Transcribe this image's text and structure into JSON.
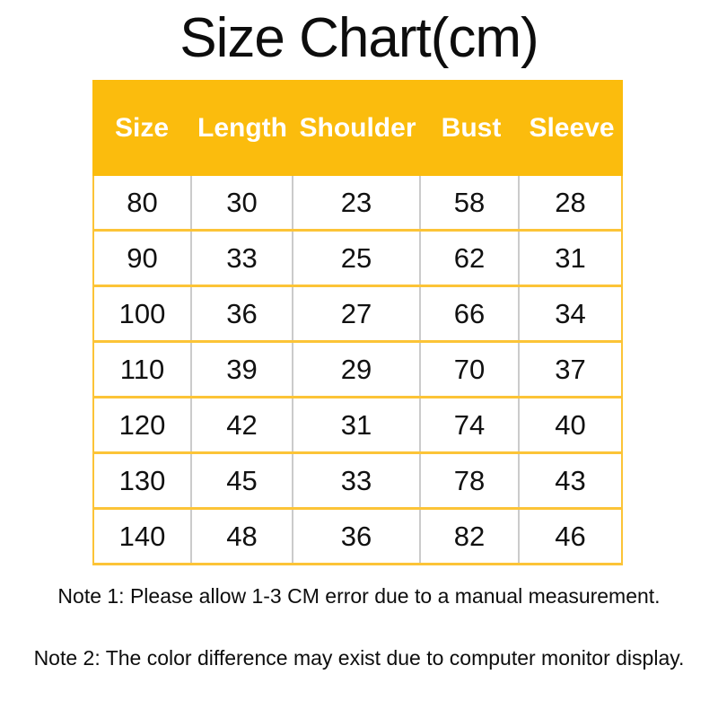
{
  "title": "Size Chart(cm)",
  "chart_data": {
    "type": "table",
    "title": "Size Chart(cm)",
    "unit": "cm",
    "columns": [
      "Size",
      "Length",
      "Shoulder",
      "Bust",
      "Sleeve"
    ],
    "rows": [
      [
        "80",
        "30",
        "23",
        "58",
        "28"
      ],
      [
        "90",
        "33",
        "25",
        "62",
        "31"
      ],
      [
        "100",
        "36",
        "27",
        "66",
        "34"
      ],
      [
        "110",
        "39",
        "29",
        "70",
        "37"
      ],
      [
        "120",
        "42",
        "31",
        "74",
        "40"
      ],
      [
        "130",
        "45",
        "33",
        "78",
        "43"
      ],
      [
        "140",
        "48",
        "36",
        "82",
        "46"
      ]
    ],
    "layout": {
      "header_fill": "amber",
      "row_divider": "gold",
      "column_divider": "gray",
      "grid": "on"
    }
  },
  "notes": {
    "note1": "Note 1: Please allow 1-3 CM error due to a manual measurement.",
    "note2": "Note 2: The color difference may exist due to computer monitor display."
  },
  "colors": {
    "header_bg": "#fbbc0d",
    "header_text": "#ffffff",
    "grid_gold": "#fcc437",
    "grid_gray": "#cbcbcb",
    "text": "#111111"
  }
}
